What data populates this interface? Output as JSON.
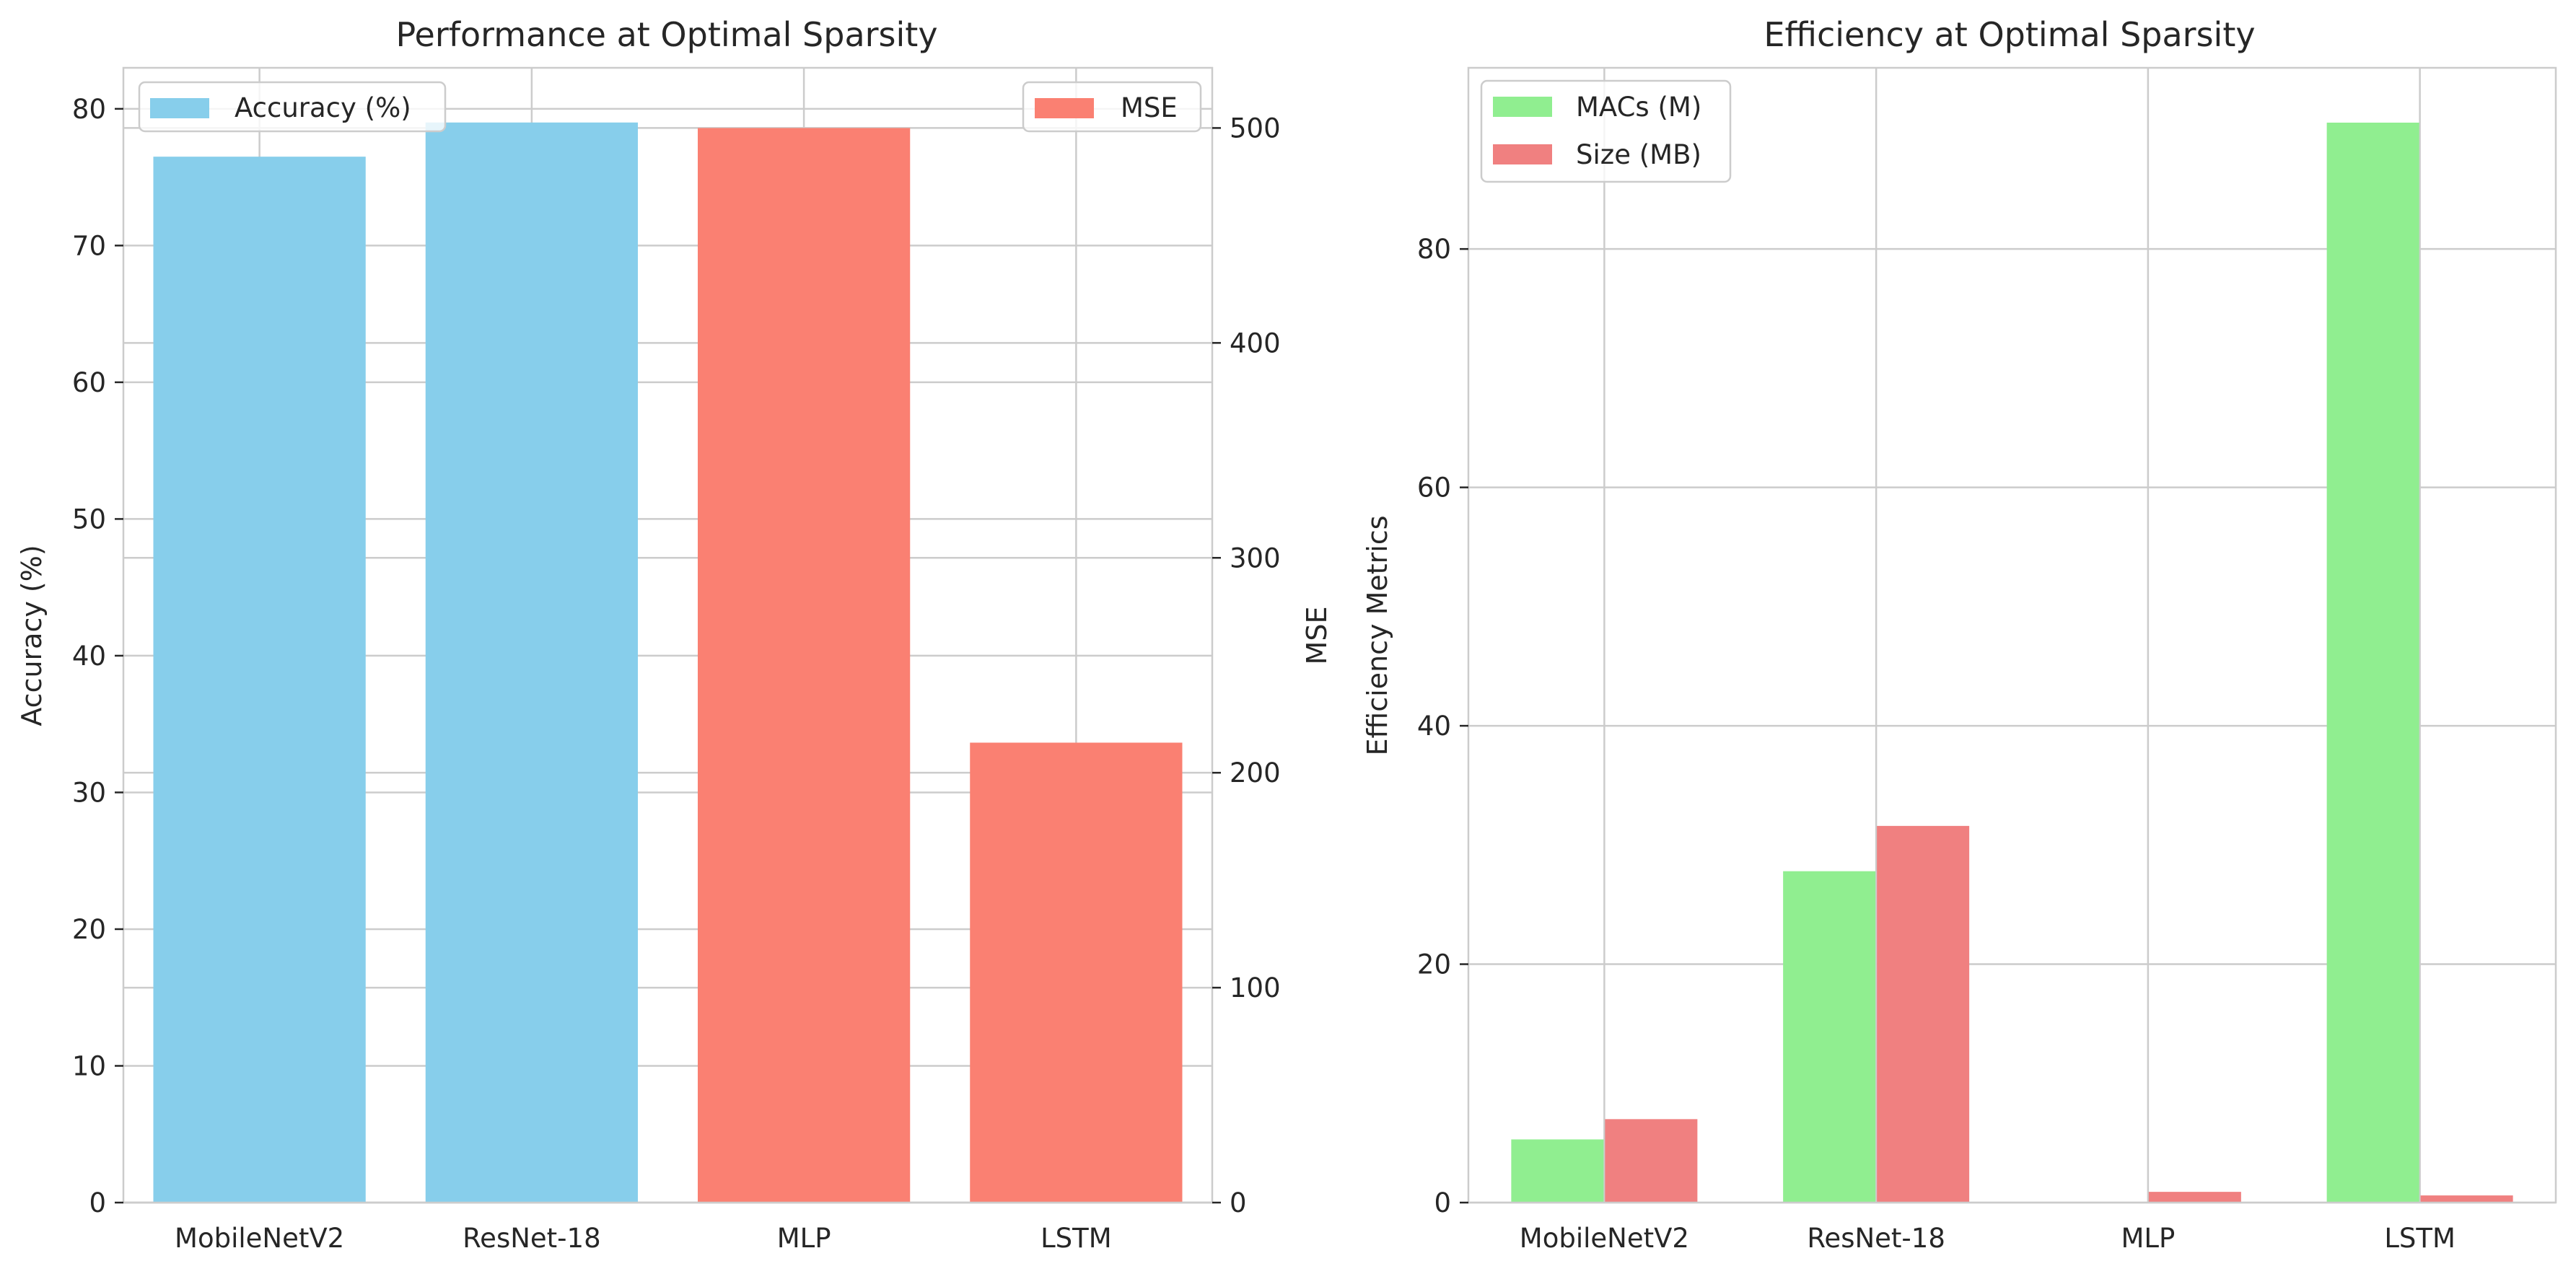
{
  "colors": {
    "accuracy": "#87CEEB",
    "mse": "#FA8072",
    "macs": "#90EE90",
    "size": "#F08080",
    "grid": "#cccccc",
    "spine": "#cccccc",
    "text": "#262626"
  },
  "chart_data": [
    {
      "type": "bar",
      "title": "Performance at Optimal Sparsity",
      "categories": [
        "MobileNetV2",
        "ResNet-18",
        "MLP",
        "LSTM"
      ],
      "ylabel": "Accuracy (%)",
      "ylim": [
        0,
        83
      ],
      "yticks": [
        "0",
        "10",
        "20",
        "30",
        "40",
        "50",
        "60",
        "70",
        "80"
      ],
      "y2label": "MSE",
      "y2lim": [
        0,
        528
      ],
      "y2ticks": [
        "0",
        "100",
        "200",
        "300",
        "400",
        "500"
      ],
      "grid": true,
      "series": [
        {
          "name": "Accuracy (%)",
          "axis": "left",
          "values": [
            76.5,
            79.0,
            null,
            null
          ]
        },
        {
          "name": "MSE",
          "axis": "right",
          "values": [
            null,
            null,
            500,
            214
          ]
        }
      ],
      "legends": [
        {
          "placement": "upper-left",
          "entries": [
            "Accuracy (%)"
          ]
        },
        {
          "placement": "upper-right",
          "entries": [
            "MSE"
          ]
        }
      ]
    },
    {
      "type": "bar",
      "title": "Efficiency at Optimal Sparsity",
      "categories": [
        "MobileNetV2",
        "ResNet-18",
        "MLP",
        "LSTM"
      ],
      "ylabel": "Efficiency Metrics",
      "ylim": [
        0,
        95.2
      ],
      "yticks": [
        "0",
        "20",
        "40",
        "60",
        "80"
      ],
      "grid": true,
      "series": [
        {
          "name": "MACs (M)",
          "values": [
            5.3,
            27.8,
            0,
            90.6
          ]
        },
        {
          "name": "Size (MB)",
          "values": [
            7.0,
            31.6,
            0.9,
            0.6
          ]
        }
      ],
      "legends": [
        {
          "placement": "upper-left",
          "entries": [
            "MACs (M)",
            "Size (MB)"
          ]
        }
      ]
    }
  ]
}
